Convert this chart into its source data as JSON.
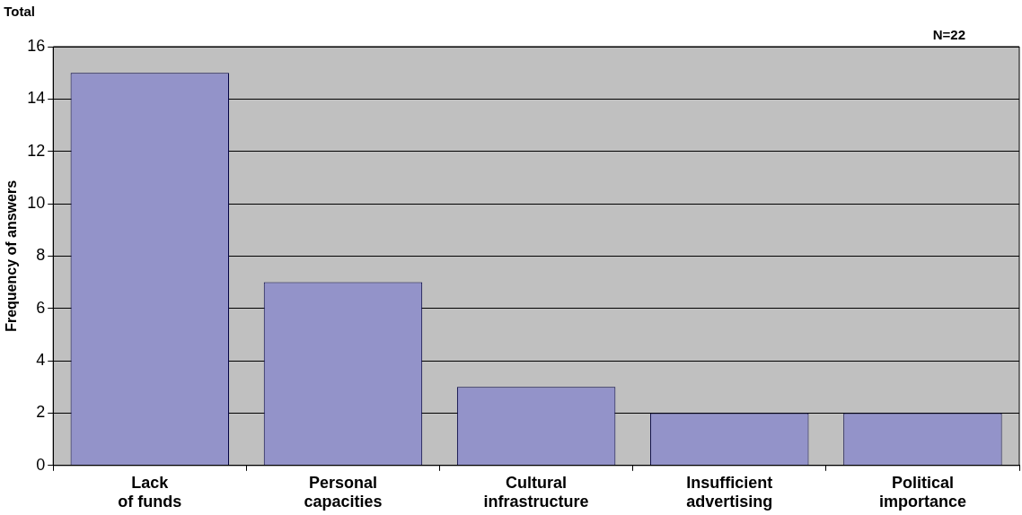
{
  "chart_data": {
    "type": "bar",
    "ylabel": "Frequency of answers",
    "categories": [
      "Lack of funds",
      "Personal capacities",
      "Cultural infrastructure",
      "Insufficient advertising",
      "Political importance"
    ],
    "values": [
      15,
      7,
      3,
      2,
      2
    ],
    "color": "#9393c9",
    "ylim": [
      0,
      16
    ],
    "yticks": [
      0,
      2,
      4,
      6,
      8,
      10,
      12,
      14,
      16
    ],
    "grid": "y",
    "legend": false,
    "annotations": [
      "Total",
      "N=22"
    ]
  }
}
